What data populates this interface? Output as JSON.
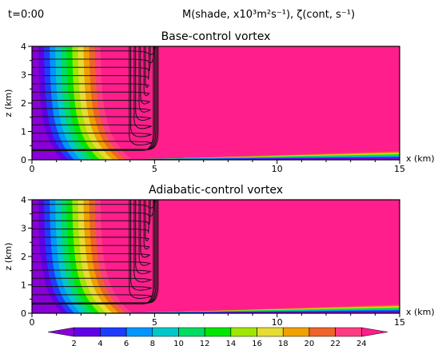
{
  "header": {
    "time_label": "t=0:00",
    "field_label": "M(shade, x10³m²s⁻¹), ζ(cont, s⁻¹)"
  },
  "chart_data": [
    {
      "type": "heatmap",
      "title": "Base-control vortex",
      "xlabel": "x (km)",
      "ylabel": "z (km)",
      "xlim": [
        0,
        15
      ],
      "ylim": [
        0,
        4
      ],
      "x_ticks": [
        0,
        5,
        10,
        15
      ],
      "y_ticks": [
        0,
        1,
        2,
        3,
        4
      ],
      "shaded_field": "M",
      "contour_field": "ζ",
      "vortex_core_radius_km": 5,
      "boundary_layer_depth_km": 0.3
    },
    {
      "type": "heatmap",
      "title": "Adiabatic-control vortex",
      "xlabel": "x (km)",
      "ylabel": "z (km)",
      "xlim": [
        0,
        15
      ],
      "ylim": [
        0,
        4
      ],
      "x_ticks": [
        0,
        5,
        10,
        15
      ],
      "y_ticks": [
        0,
        1,
        2,
        3,
        4
      ],
      "shaded_field": "M",
      "contour_field": "ζ",
      "vortex_core_radius_km": 5,
      "boundary_layer_depth_km": 0.3
    }
  ],
  "colorbar": {
    "levels": [
      2,
      4,
      6,
      8,
      10,
      12,
      14,
      16,
      18,
      20,
      22,
      24
    ],
    "colors": [
      "#8a00d8",
      "#6000e8",
      "#1e3cff",
      "#0096ff",
      "#00c8c8",
      "#00dc64",
      "#00e600",
      "#a0e600",
      "#e6dc32",
      "#f0a000",
      "#f0642a",
      "#ff3c82",
      "#ff1e8c"
    ]
  }
}
